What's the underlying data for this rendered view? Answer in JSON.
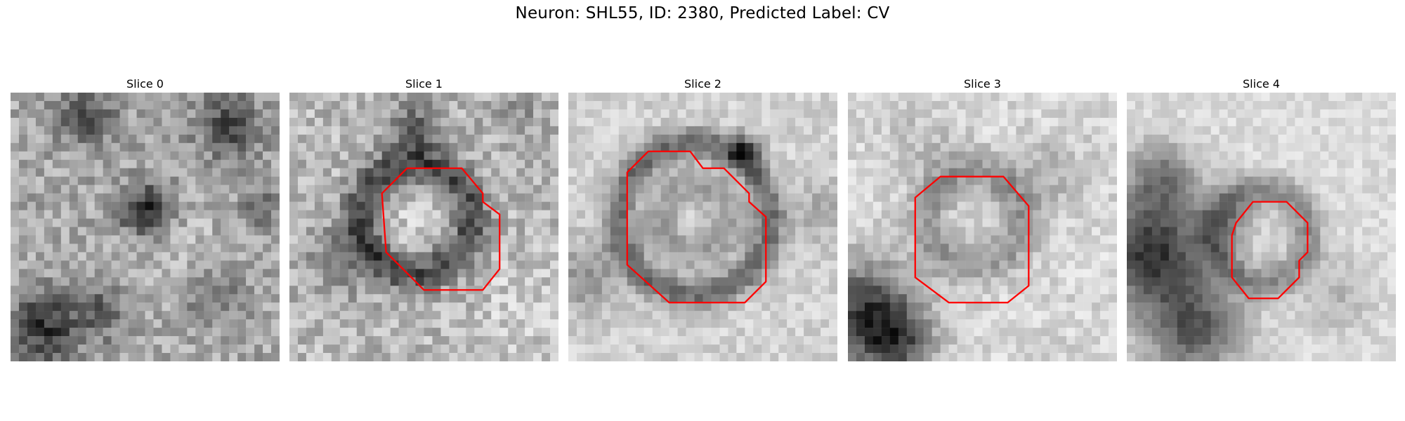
{
  "figure": {
    "title": "Neuron: SHL55, ID: 2380, Predicted Label: CV"
  },
  "panels": [
    {
      "label": "Slice 0",
      "has_outline": false
    },
    {
      "label": "Slice 1",
      "has_outline": true
    },
    {
      "label": "Slice 2",
      "has_outline": true
    },
    {
      "label": "Slice 3",
      "has_outline": true
    },
    {
      "label": "Slice 4",
      "has_outline": true
    }
  ],
  "colors": {
    "outline": "#ff0000",
    "colormap": "gray"
  }
}
